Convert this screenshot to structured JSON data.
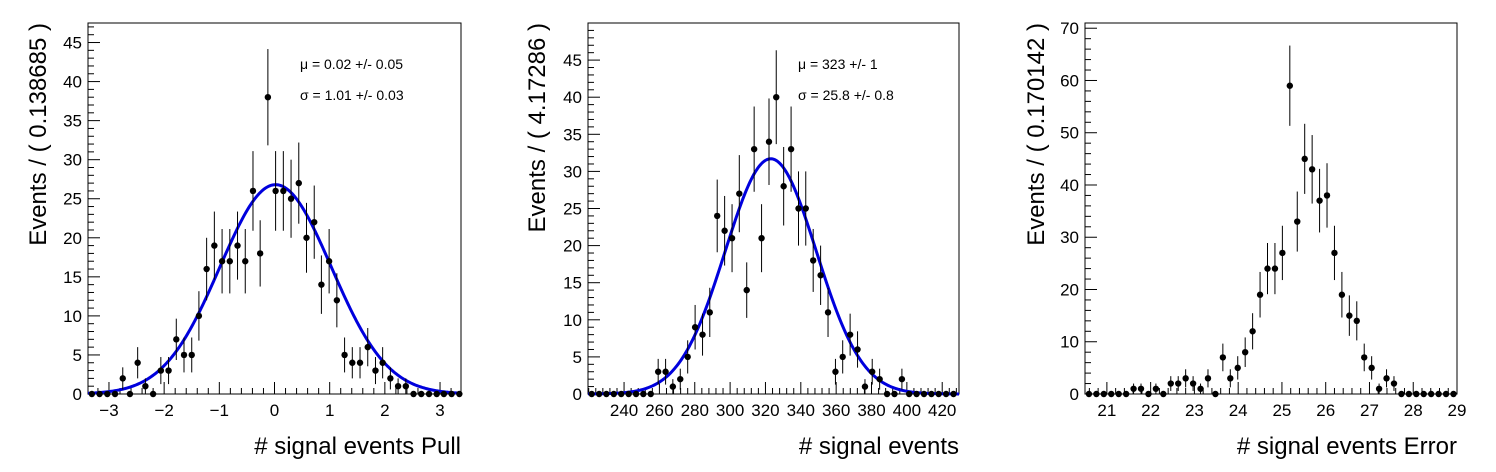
{
  "chart_data": [
    {
      "type": "scatter",
      "xlabel": "# signal events Pull",
      "ylabel": "Events / ( 0.138685 )",
      "xlim": [
        -3.38,
        3.38
      ],
      "ylim": [
        0,
        47.5
      ],
      "xticks": [
        -3,
        -2,
        -1,
        0,
        1,
        2,
        3
      ],
      "xtick_labels": [
        "−3",
        "−2",
        "−1",
        "0",
        "1",
        "2",
        "3"
      ],
      "yticks": [
        0,
        5,
        10,
        15,
        20,
        25,
        30,
        35,
        40,
        45
      ],
      "stats": [
        {
          "symbol": "μ",
          "text": "0.02 +/- 0.05"
        },
        {
          "symbol": "σ",
          "text": "1.01 +/- 0.03"
        }
      ],
      "fit": {
        "mean": 0.02,
        "sigma": 1.01,
        "amplitude": 26.8,
        "color": "#0000dd"
      },
      "x": [
        -3.31,
        -3.17,
        -3.03,
        -2.89,
        -2.75,
        -2.62,
        -2.48,
        -2.34,
        -2.2,
        -2.06,
        -1.92,
        -1.78,
        -1.64,
        -1.5,
        -1.37,
        -1.23,
        -1.09,
        -0.95,
        -0.81,
        -0.67,
        -0.53,
        -0.39,
        -0.26,
        -0.12,
        0.02,
        0.16,
        0.3,
        0.44,
        0.58,
        0.72,
        0.85,
        0.99,
        1.13,
        1.27,
        1.41,
        1.55,
        1.69,
        1.83,
        1.96,
        2.1,
        2.24,
        2.38,
        2.52,
        2.66,
        2.8,
        2.94,
        3.07,
        3.21,
        3.35
      ],
      "y": [
        0,
        0,
        0,
        0,
        2,
        0,
        4,
        1,
        0,
        3,
        3,
        7,
        5,
        5,
        10,
        16,
        19,
        17,
        17,
        19,
        17,
        26,
        18,
        38,
        26,
        26,
        25,
        27,
        20,
        22,
        14,
        17,
        12,
        5,
        4,
        4,
        6,
        3,
        4,
        2,
        1,
        1,
        0,
        0,
        0,
        0,
        0,
        0,
        0
      ]
    },
    {
      "type": "scatter",
      "xlabel": "# signal events",
      "ylabel": "Events / ( 4.17286 )",
      "xlim": [
        219.6,
        429.5
      ],
      "ylim": [
        0,
        50
      ],
      "xticks": [
        240,
        260,
        280,
        300,
        320,
        340,
        360,
        380,
        400,
        420
      ],
      "xtick_labels": [
        "240",
        "260",
        "280",
        "300",
        "320",
        "340",
        "360",
        "380",
        "400",
        "420"
      ],
      "yticks": [
        0,
        5,
        10,
        15,
        20,
        25,
        30,
        35,
        40,
        45
      ],
      "stats": [
        {
          "symbol": "μ",
          "text": "323 +/- 1"
        },
        {
          "symbol": "σ",
          "text": "25.8 +/- 0.8"
        }
      ],
      "fit": {
        "mean": 323,
        "sigma": 25.8,
        "amplitude": 31.7,
        "color": "#0000dd"
      },
      "x": [
        221.7,
        225.9,
        230.0,
        234.2,
        238.4,
        242.6,
        246.8,
        250.9,
        255.1,
        259.3,
        263.5,
        267.6,
        271.8,
        276.0,
        280.2,
        284.4,
        288.5,
        292.7,
        296.9,
        301.1,
        305.2,
        309.4,
        313.6,
        317.8,
        322.0,
        326.1,
        330.3,
        334.5,
        338.7,
        342.8,
        347.0,
        351.2,
        355.4,
        359.6,
        363.7,
        367.9,
        372.1,
        376.3,
        380.4,
        384.6,
        388.8,
        393.0,
        397.2,
        401.3,
        405.5,
        409.7,
        413.9,
        418.0,
        422.2,
        426.4
      ],
      "y": [
        0,
        0,
        0,
        0,
        0,
        0,
        0,
        0,
        0,
        3,
        3,
        1,
        2,
        5,
        9,
        8,
        11,
        24,
        22,
        21,
        27,
        14,
        33,
        21,
        34,
        40,
        28,
        33,
        25,
        25,
        18,
        16,
        11,
        3,
        5,
        8,
        6,
        1,
        3,
        2,
        0,
        0,
        2,
        0,
        0,
        0,
        0,
        0,
        0,
        0
      ]
    },
    {
      "type": "scatter",
      "xlabel": "# signal events Error",
      "ylabel": "Events / ( 0.170142 )",
      "xlim": [
        20.5,
        29.0
      ],
      "ylim": [
        0,
        71
      ],
      "xticks": [
        21,
        22,
        23,
        24,
        25,
        26,
        27,
        28,
        29
      ],
      "xtick_labels": [
        "21",
        "22",
        "23",
        "24",
        "25",
        "26",
        "27",
        "28",
        "29"
      ],
      "yticks": [
        0,
        10,
        20,
        30,
        40,
        50,
        60,
        70
      ],
      "stats": [],
      "x": [
        20.59,
        20.76,
        20.93,
        21.1,
        21.27,
        21.44,
        21.61,
        21.78,
        21.95,
        22.12,
        22.29,
        22.46,
        22.63,
        22.8,
        22.97,
        23.14,
        23.31,
        23.48,
        23.65,
        23.82,
        23.99,
        24.16,
        24.33,
        24.5,
        24.67,
        24.84,
        25.01,
        25.18,
        25.35,
        25.52,
        25.69,
        25.86,
        26.03,
        26.2,
        26.37,
        26.54,
        26.71,
        26.88,
        27.05,
        27.22,
        27.39,
        27.56,
        27.73,
        27.9,
        28.07,
        28.24,
        28.41,
        28.58,
        28.75,
        28.92
      ],
      "y": [
        0,
        0,
        0,
        0,
        0,
        0,
        1,
        1,
        0,
        1,
        0,
        2,
        2,
        3,
        2,
        1,
        3,
        0,
        7,
        3,
        5,
        8,
        12,
        19,
        24,
        24,
        27,
        59,
        33,
        45,
        43,
        37,
        38,
        27,
        19,
        15,
        14,
        7,
        5,
        1,
        3,
        2,
        0,
        0,
        0,
        0,
        0,
        0,
        0,
        0
      ]
    }
  ]
}
